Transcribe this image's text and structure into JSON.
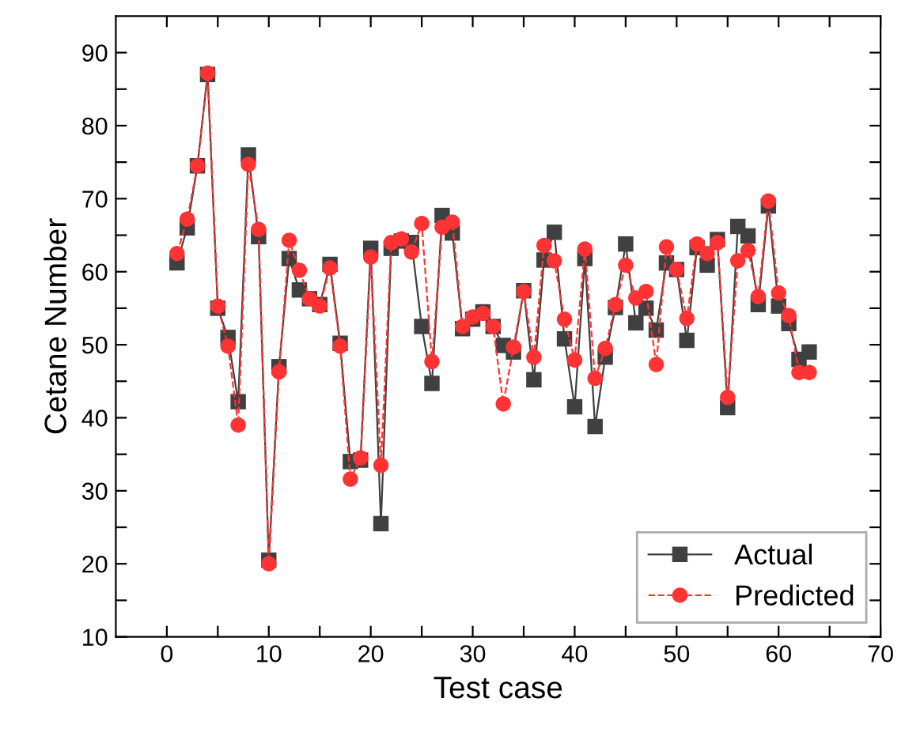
{
  "chart_data": {
    "type": "line",
    "xlabel": "Test case",
    "ylabel": "Cetane Number",
    "x": [
      1,
      2,
      3,
      4,
      5,
      6,
      7,
      8,
      9,
      10,
      11,
      12,
      13,
      14,
      15,
      16,
      17,
      18,
      19,
      20,
      21,
      22,
      23,
      24,
      25,
      26,
      27,
      28,
      29,
      30,
      31,
      32,
      33,
      34,
      35,
      36,
      37,
      38,
      39,
      40,
      41,
      42,
      43,
      44,
      45,
      46,
      47,
      48,
      49,
      50,
      51,
      52,
      53,
      54,
      55,
      56,
      57,
      58,
      59,
      60,
      61,
      62,
      63
    ],
    "series": [
      {
        "name": "Actual",
        "color": "#404040",
        "marker": "square",
        "line_style": "solid",
        "values": [
          61.2,
          66,
          74.5,
          87,
          55,
          51,
          42.2,
          76,
          64.8,
          20.5,
          47,
          61.8,
          57.5,
          56.3,
          55.5,
          61,
          50.2,
          34,
          34.2,
          63.2,
          25.5,
          63.2,
          64.2,
          64,
          52.5,
          44.7,
          67.7,
          65.3,
          52.2,
          53.5,
          54.5,
          52.5,
          49.9,
          49,
          57.4,
          45.2,
          61.6,
          65.4,
          50.8,
          41.5,
          61.8,
          38.8,
          48.3,
          55.1,
          63.8,
          53,
          55,
          52,
          61.2,
          60.3,
          50.6,
          63.3,
          60.9,
          64.4,
          41.4,
          66.2,
          64.9,
          55.5,
          69,
          55.3,
          52.9,
          48,
          49
        ]
      },
      {
        "name": "Predicted",
        "color": "#ff3333",
        "marker": "circle",
        "line_style": "dashed",
        "values": [
          62.5,
          67.2,
          74.5,
          87.2,
          55.3,
          49.8,
          39,
          74.7,
          65.8,
          20,
          46.3,
          64.3,
          60.2,
          56.3,
          55.3,
          60.5,
          49.8,
          31.6,
          34.5,
          62,
          33.5,
          64,
          64.5,
          62.7,
          66.6,
          47.7,
          66.1,
          66.8,
          52.5,
          53.8,
          54.3,
          52.5,
          41.9,
          49.7,
          57.3,
          48.3,
          63.6,
          61.5,
          53.5,
          47.9,
          63.1,
          45.4,
          49.5,
          55.5,
          60.9,
          56.4,
          57.3,
          47.3,
          63.4,
          60.3,
          53.6,
          63.8,
          62.5,
          64,
          42.8,
          61.5,
          62.9,
          56.6,
          69.7,
          57.1,
          54,
          46.2,
          46.2
        ]
      }
    ],
    "xlim": [
      -5,
      70
    ],
    "ylim": [
      10,
      95
    ],
    "xticks": [
      0,
      {
        "value": 5,
        "label": null
      },
      10,
      {
        "value": 15,
        "label": null
      },
      20,
      {
        "value": 25,
        "label": null
      },
      30,
      {
        "value": 35,
        "label": null
      },
      40,
      {
        "value": 45,
        "label": null
      },
      50,
      {
        "value": 55,
        "label": null
      },
      60,
      {
        "value": 65,
        "label": null
      },
      70
    ],
    "yticks": [
      10,
      {
        "value": 15,
        "label": null
      },
      20,
      {
        "value": 25,
        "label": null
      },
      30,
      {
        "value": 35,
        "label": null
      },
      40,
      {
        "value": 45,
        "label": null
      },
      50,
      {
        "value": 55,
        "label": null
      },
      60,
      {
        "value": 65,
        "label": null
      },
      70,
      {
        "value": 75,
        "label": null
      },
      80,
      {
        "value": 85,
        "label": null
      },
      90
    ],
    "grid": false,
    "legend": "bottom right"
  }
}
